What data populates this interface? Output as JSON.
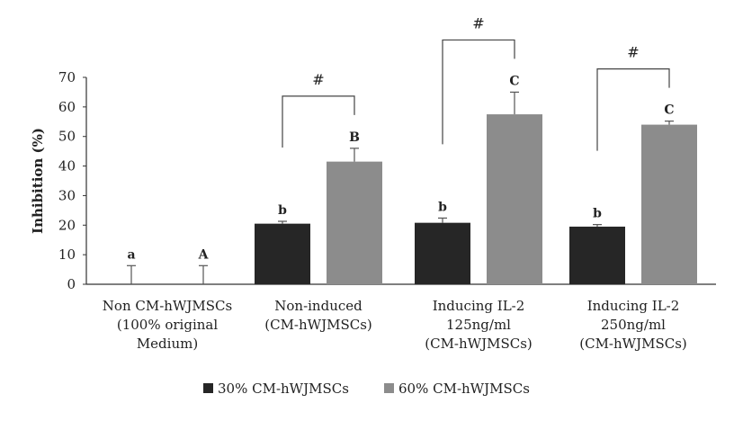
{
  "chart_data": {
    "type": "bar",
    "ylabel": "Inhibition  (%)",
    "ylim": [
      0,
      70
    ],
    "yticks": [
      "0",
      "10",
      "20",
      "30",
      "40",
      "50",
      "60",
      "70"
    ],
    "categories": [
      [
        "Non CM-hWJMSCs",
        "(100% original",
        "Medium)"
      ],
      [
        "Non-induced",
        "(CM-hWJMSCs)"
      ],
      [
        "Inducing IL-2",
        "125ng/ml",
        "(CM-hWJMSCs)"
      ],
      [
        "Inducing IL-2",
        "250ng/ml",
        "(CM-hWJMSCs)"
      ]
    ],
    "series": [
      {
        "name": "30%  CM-hWJMSCs",
        "color": "#262626",
        "values": [
          0,
          20.5,
          20.8,
          19.5
        ],
        "errors": [
          6.3,
          0.8,
          1.6,
          0.7
        ],
        "labels": [
          "a",
          "b",
          "b",
          "b"
        ]
      },
      {
        "name": "60%  CM-hWJMSCs",
        "color": "#8c8c8c",
        "values": [
          0,
          41.5,
          57.5,
          54
        ],
        "errors": [
          6.3,
          4.5,
          7.5,
          1.2
        ],
        "labels": [
          "A",
          "B",
          "C",
          "C"
        ]
      }
    ],
    "significance": [
      {
        "category": 1,
        "label": "#"
      },
      {
        "category": 2,
        "label": "#"
      },
      {
        "category": 3,
        "label": "#"
      }
    ],
    "legend_position": "bottom",
    "grid": false
  }
}
